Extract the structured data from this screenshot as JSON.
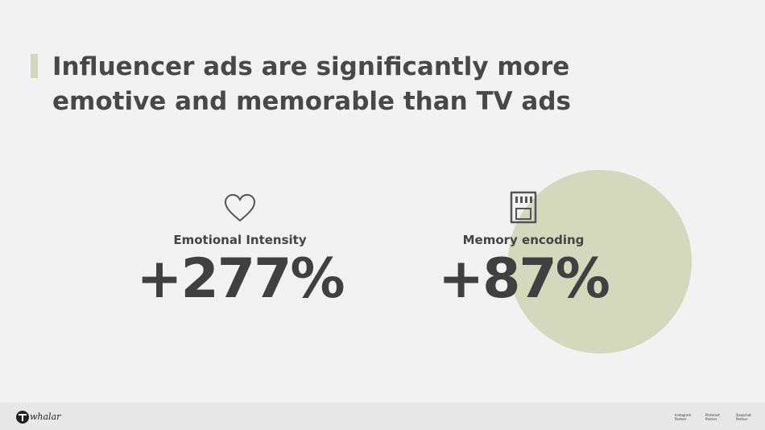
{
  "header": {
    "title": "Influencer ads are significantly more emotive and memorable than TV ads"
  },
  "stats": [
    {
      "label": "Emotional Intensity",
      "value": "+277%"
    },
    {
      "label": "Memory encoding",
      "value": "+87%"
    }
  ],
  "footer": {
    "brand": "whalar",
    "badges": [
      "Instagram Partner",
      "Pinterest Partner",
      "Snapchat Partner"
    ]
  }
}
